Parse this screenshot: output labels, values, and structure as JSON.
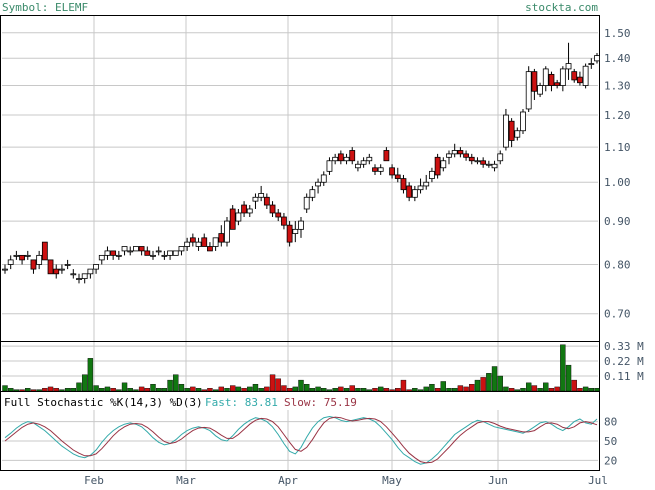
{
  "header": {
    "symbol_label": "Symbol: ELEMF",
    "source_label": "stockta.com"
  },
  "colors": {
    "up_candle": "#ffffff",
    "down_candle": "#cc1111",
    "candle_outline": "#000000",
    "volume_up": "#117711",
    "volume_down": "#cc1111",
    "fast_line": "#33aaaa",
    "slow_line": "#993344",
    "grid": "#c8c8c8",
    "text": "#445566",
    "header_text": "#3a8a6a"
  },
  "chart_data": [
    {
      "type": "candlestick",
      "panel": "price",
      "y_ticks": [
        "0.70",
        "0.80",
        "0.90",
        "1.00",
        "1.10",
        "1.20",
        "1.30",
        "1.40",
        "1.50"
      ],
      "ylim": [
        0.65,
        1.57
      ],
      "y_scale": "log",
      "grid": true,
      "x_labels": [
        "Feb",
        "Mar",
        "Apr",
        "May",
        "Jun",
        "Jul"
      ],
      "candles": [
        [
          0.79,
          0.8,
          0.78,
          0.79
        ],
        [
          0.8,
          0.82,
          0.79,
          0.81
        ],
        [
          0.82,
          0.83,
          0.81,
          0.82
        ],
        [
          0.82,
          0.82,
          0.8,
          0.81
        ],
        [
          0.82,
          0.83,
          0.81,
          0.82
        ],
        [
          0.81,
          0.81,
          0.78,
          0.79
        ],
        [
          0.8,
          0.83,
          0.79,
          0.82
        ],
        [
          0.85,
          0.85,
          0.81,
          0.81
        ],
        [
          0.81,
          0.81,
          0.78,
          0.78
        ],
        [
          0.79,
          0.8,
          0.77,
          0.78
        ],
        [
          0.79,
          0.8,
          0.78,
          0.79
        ],
        [
          0.8,
          0.81,
          0.79,
          0.8
        ],
        [
          0.78,
          0.79,
          0.77,
          0.78
        ],
        [
          0.77,
          0.78,
          0.76,
          0.77
        ],
        [
          0.77,
          0.78,
          0.76,
          0.78
        ],
        [
          0.78,
          0.79,
          0.77,
          0.79
        ],
        [
          0.79,
          0.8,
          0.78,
          0.8
        ],
        [
          0.81,
          0.82,
          0.8,
          0.82
        ],
        [
          0.82,
          0.84,
          0.81,
          0.83
        ],
        [
          0.83,
          0.83,
          0.81,
          0.82
        ],
        [
          0.82,
          0.83,
          0.81,
          0.82
        ],
        [
          0.83,
          0.84,
          0.82,
          0.84
        ],
        [
          0.83,
          0.84,
          0.82,
          0.83
        ],
        [
          0.83,
          0.84,
          0.83,
          0.84
        ],
        [
          0.84,
          0.84,
          0.82,
          0.83
        ],
        [
          0.83,
          0.84,
          0.82,
          0.82
        ],
        [
          0.82,
          0.83,
          0.81,
          0.82
        ],
        [
          0.83,
          0.84,
          0.82,
          0.83
        ],
        [
          0.82,
          0.83,
          0.81,
          0.82
        ],
        [
          0.82,
          0.83,
          0.81,
          0.83
        ],
        [
          0.82,
          0.83,
          0.82,
          0.83
        ],
        [
          0.83,
          0.84,
          0.82,
          0.84
        ],
        [
          0.84,
          0.86,
          0.83,
          0.85
        ],
        [
          0.86,
          0.87,
          0.84,
          0.85
        ],
        [
          0.84,
          0.86,
          0.83,
          0.85
        ],
        [
          0.86,
          0.87,
          0.84,
          0.84
        ],
        [
          0.84,
          0.85,
          0.83,
          0.83
        ],
        [
          0.84,
          0.86,
          0.83,
          0.86
        ],
        [
          0.87,
          0.89,
          0.84,
          0.85
        ],
        [
          0.85,
          0.91,
          0.84,
          0.9
        ],
        [
          0.93,
          0.94,
          0.88,
          0.88
        ],
        [
          0.9,
          0.93,
          0.89,
          0.92
        ],
        [
          0.94,
          0.95,
          0.91,
          0.92
        ],
        [
          0.92,
          0.94,
          0.91,
          0.93
        ],
        [
          0.95,
          0.97,
          0.93,
          0.96
        ],
        [
          0.96,
          0.99,
          0.95,
          0.97
        ],
        [
          0.96,
          0.97,
          0.93,
          0.94
        ],
        [
          0.94,
          0.95,
          0.91,
          0.92
        ],
        [
          0.92,
          0.93,
          0.9,
          0.91
        ],
        [
          0.91,
          0.92,
          0.88,
          0.89
        ],
        [
          0.89,
          0.9,
          0.84,
          0.85
        ],
        [
          0.87,
          0.9,
          0.85,
          0.88
        ],
        [
          0.88,
          0.91,
          0.86,
          0.9
        ],
        [
          0.93,
          0.97,
          0.92,
          0.96
        ],
        [
          0.96,
          0.99,
          0.95,
          0.98
        ],
        [
          0.99,
          1.01,
          0.97,
          1.0
        ],
        [
          1.0,
          1.03,
          0.99,
          1.02
        ],
        [
          1.03,
          1.07,
          1.02,
          1.06
        ],
        [
          1.06,
          1.08,
          1.05,
          1.07
        ],
        [
          1.08,
          1.09,
          1.05,
          1.06
        ],
        [
          1.06,
          1.08,
          1.05,
          1.07
        ],
        [
          1.09,
          1.1,
          1.05,
          1.06
        ],
        [
          1.04,
          1.06,
          1.03,
          1.05
        ],
        [
          1.05,
          1.07,
          1.04,
          1.06
        ],
        [
          1.06,
          1.08,
          1.05,
          1.07
        ],
        [
          1.04,
          1.05,
          1.02,
          1.03
        ],
        [
          1.03,
          1.05,
          1.02,
          1.04
        ],
        [
          1.09,
          1.1,
          1.06,
          1.06
        ],
        [
          1.04,
          1.05,
          1.01,
          1.02
        ],
        [
          1.02,
          1.04,
          1.0,
          1.01
        ],
        [
          1.01,
          1.02,
          0.97,
          0.98
        ],
        [
          0.99,
          1.0,
          0.95,
          0.96
        ],
        [
          0.96,
          0.99,
          0.95,
          0.98
        ],
        [
          0.98,
          1.01,
          0.97,
          0.99
        ],
        [
          0.99,
          1.02,
          0.98,
          1.0
        ],
        [
          1.01,
          1.04,
          1.0,
          1.03
        ],
        [
          1.07,
          1.08,
          1.01,
          1.02
        ],
        [
          1.04,
          1.07,
          1.03,
          1.06
        ],
        [
          1.07,
          1.09,
          1.05,
          1.08
        ],
        [
          1.08,
          1.11,
          1.07,
          1.09
        ],
        [
          1.09,
          1.1,
          1.07,
          1.08
        ],
        [
          1.08,
          1.09,
          1.06,
          1.07
        ],
        [
          1.07,
          1.08,
          1.05,
          1.06
        ],
        [
          1.06,
          1.07,
          1.05,
          1.06
        ],
        [
          1.06,
          1.07,
          1.04,
          1.05
        ],
        [
          1.05,
          1.06,
          1.04,
          1.05
        ],
        [
          1.04,
          1.06,
          1.03,
          1.05
        ],
        [
          1.06,
          1.09,
          1.05,
          1.08
        ],
        [
          1.1,
          1.22,
          1.09,
          1.2
        ],
        [
          1.18,
          1.19,
          1.1,
          1.12
        ],
        [
          1.13,
          1.16,
          1.12,
          1.15
        ],
        [
          1.15,
          1.22,
          1.14,
          1.21
        ],
        [
          1.22,
          1.37,
          1.21,
          1.35
        ],
        [
          1.35,
          1.36,
          1.25,
          1.28
        ],
        [
          1.27,
          1.31,
          1.26,
          1.3
        ],
        [
          1.3,
          1.37,
          1.28,
          1.36
        ],
        [
          1.34,
          1.35,
          1.28,
          1.3
        ],
        [
          1.31,
          1.32,
          1.29,
          1.3
        ],
        [
          1.3,
          1.37,
          1.28,
          1.36
        ],
        [
          1.36,
          1.46,
          1.32,
          1.38
        ],
        [
          1.35,
          1.36,
          1.31,
          1.32
        ],
        [
          1.33,
          1.35,
          1.3,
          1.31
        ],
        [
          1.3,
          1.38,
          1.29,
          1.37
        ],
        [
          1.38,
          1.4,
          1.36,
          1.38
        ],
        [
          1.39,
          1.42,
          1.38,
          1.41
        ]
      ]
    },
    {
      "type": "bar",
      "panel": "volume",
      "y_ticks": [
        "0.11 M",
        "0.22 M",
        "0.33 M"
      ],
      "ylim": [
        0,
        0.36
      ],
      "grid": true,
      "values": [
        0.04,
        0.02,
        0.01,
        0.01,
        0.02,
        0.01,
        0.01,
        0.02,
        0.03,
        0.02,
        0.01,
        0.02,
        0.02,
        0.06,
        0.12,
        0.24,
        0.04,
        0.02,
        0.03,
        0.02,
        0.01,
        0.06,
        0.02,
        0.01,
        0.03,
        0.02,
        0.05,
        0.02,
        0.02,
        0.08,
        0.12,
        0.05,
        0.02,
        0.03,
        0.02,
        0.01,
        0.02,
        0.01,
        0.03,
        0.02,
        0.04,
        0.03,
        0.02,
        0.03,
        0.05,
        0.02,
        0.03,
        0.12,
        0.09,
        0.04,
        0.02,
        0.03,
        0.08,
        0.05,
        0.02,
        0.03,
        0.02,
        0.01,
        0.02,
        0.03,
        0.02,
        0.04,
        0.02,
        0.02,
        0.01,
        0.02,
        0.03,
        0.02,
        0.01,
        0.02,
        0.08,
        0.01,
        0.02,
        0.01,
        0.03,
        0.05,
        0.02,
        0.07,
        0.02,
        0.02,
        0.04,
        0.03,
        0.05,
        0.08,
        0.1,
        0.13,
        0.18,
        0.11,
        0.03,
        0.02,
        0.01,
        0.02,
        0.06,
        0.04,
        0.02,
        0.06,
        0.02,
        0.03,
        0.34,
        0.19,
        0.08,
        0.02,
        0.03,
        0.02,
        0.02
      ]
    },
    {
      "type": "line",
      "panel": "stochastic",
      "title": "Full Stochastic %K(14,3) %D(3)",
      "fast_label": "Fast: 83.81",
      "slow_label": "Slow: 75.19",
      "y_ticks": [
        "20",
        "50",
        "80"
      ],
      "ylim": [
        5,
        98
      ],
      "grid": true,
      "series": [
        {
          "name": "Fast",
          "values": [
            55,
            62,
            70,
            76,
            80,
            78,
            72,
            66,
            58,
            50,
            42,
            36,
            30,
            26,
            24,
            28,
            36,
            48,
            58,
            66,
            72,
            76,
            78,
            76,
            72,
            64,
            55,
            48,
            44,
            46,
            52,
            60,
            66,
            70,
            72,
            70,
            66,
            58,
            52,
            50,
            58,
            68,
            76,
            82,
            86,
            84,
            80,
            72,
            60,
            46,
            34,
            30,
            40,
            56,
            70,
            80,
            86,
            88,
            86,
            82,
            80,
            82,
            84,
            86,
            84,
            80,
            72,
            62,
            52,
            40,
            30,
            24,
            18,
            14,
            16,
            22,
            30,
            40,
            50,
            60,
            66,
            72,
            78,
            82,
            80,
            76,
            72,
            70,
            68,
            66,
            64,
            62,
            66,
            72,
            78,
            80,
            76,
            70,
            66,
            72,
            80,
            84,
            78,
            76,
            84
          ]
        },
        {
          "name": "Slow",
          "values": [
            50,
            57,
            64,
            71,
            76,
            78,
            76,
            72,
            66,
            58,
            50,
            43,
            36,
            31,
            27,
            27,
            30,
            38,
            48,
            58,
            66,
            72,
            76,
            77,
            76,
            71,
            64,
            56,
            49,
            46,
            48,
            53,
            60,
            66,
            70,
            71,
            70,
            65,
            59,
            54,
            54,
            60,
            68,
            76,
            82,
            85,
            84,
            80,
            72,
            60,
            48,
            37,
            34,
            40,
            52,
            66,
            78,
            85,
            87,
            86,
            83,
            81,
            82,
            84,
            85,
            84,
            80,
            72,
            62,
            52,
            41,
            31,
            24,
            18,
            16,
            17,
            22,
            31,
            40,
            50,
            59,
            66,
            72,
            78,
            80,
            80,
            77,
            73,
            70,
            68,
            66,
            64,
            64,
            66,
            72,
            77,
            78,
            76,
            71,
            69,
            72,
            78,
            80,
            78,
            75
          ]
        }
      ]
    }
  ]
}
